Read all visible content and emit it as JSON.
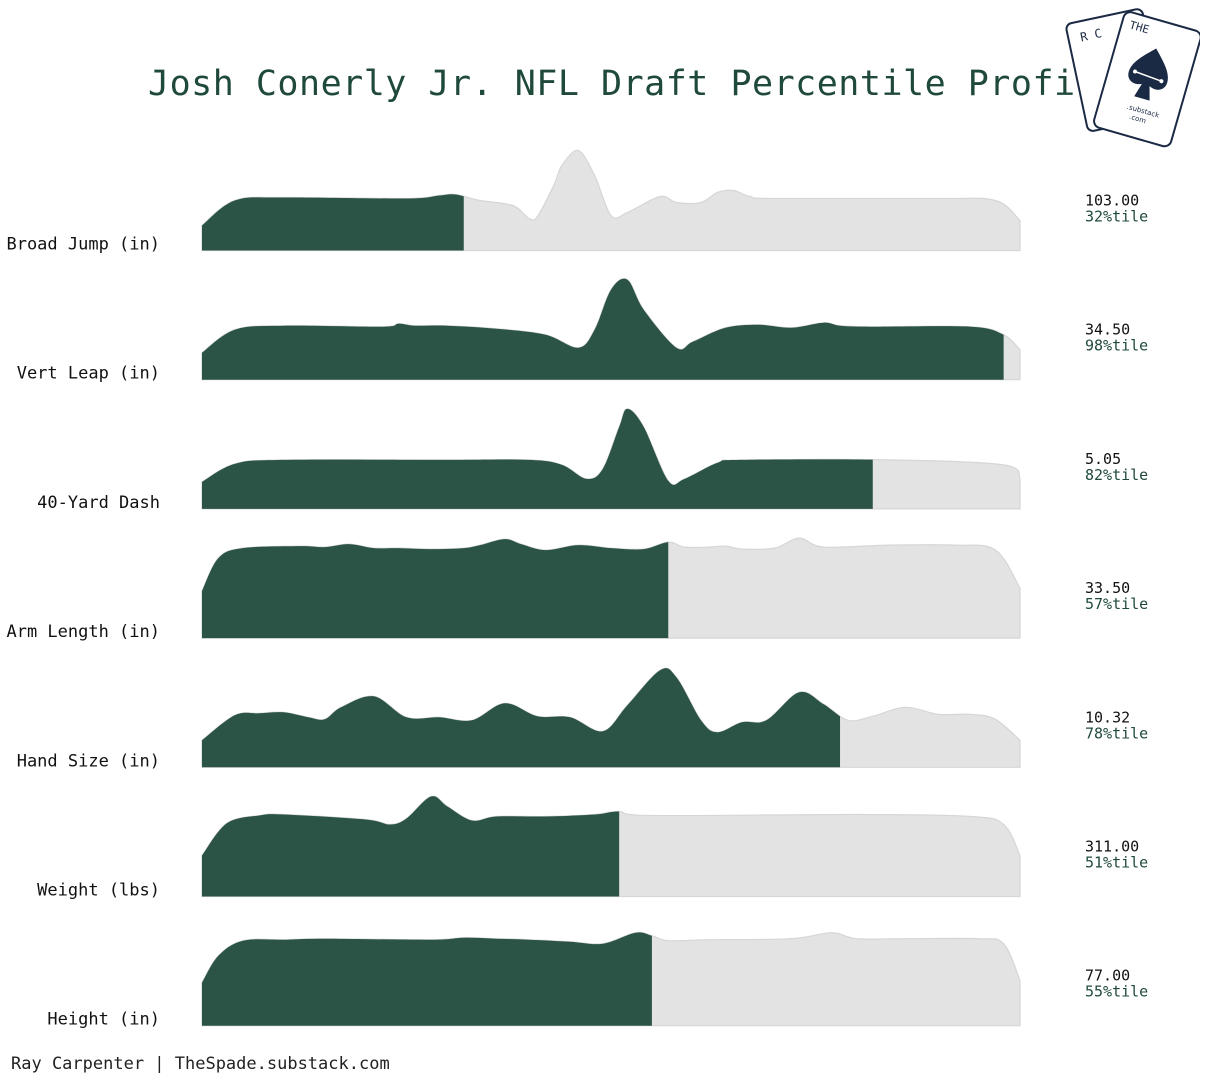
{
  "title": "Josh Conerly Jr. NFL Draft Percentile Profile",
  "footer": "Ray Carpenter | TheSpade.substack.com",
  "logo": {
    "letters_left": "R C",
    "letters_right": "T H E S P A D E",
    "site": ".substack",
    "tld": ".com",
    "icon": "spade-icon"
  },
  "colors": {
    "fill": "#2b5446",
    "background_density": "#e3e3e3",
    "outline": "#d6d6d6",
    "title": "#1f4a3a",
    "pct_text": "#1f4a3a"
  },
  "chart_data": {
    "type": "area",
    "title": "Josh Conerly Jr. NFL Draft Percentile Profile",
    "series": [
      {
        "name": "Broad Jump (in)",
        "value": "103.00",
        "percentile_label": "32%tile",
        "percentile": 32,
        "density": [
          [
            0,
            0.25
          ],
          [
            0.04,
            0.5
          ],
          [
            0.1,
            0.53
          ],
          [
            0.25,
            0.52
          ],
          [
            0.29,
            0.55
          ],
          [
            0.31,
            0.56
          ],
          [
            0.34,
            0.5
          ],
          [
            0.38,
            0.45
          ],
          [
            0.4,
            0.32
          ],
          [
            0.41,
            0.34
          ],
          [
            0.43,
            0.65
          ],
          [
            0.44,
            0.85
          ],
          [
            0.46,
            1.0
          ],
          [
            0.48,
            0.75
          ],
          [
            0.5,
            0.35
          ],
          [
            0.52,
            0.38
          ],
          [
            0.56,
            0.54
          ],
          [
            0.58,
            0.48
          ],
          [
            0.61,
            0.48
          ],
          [
            0.63,
            0.58
          ],
          [
            0.65,
            0.6
          ],
          [
            0.67,
            0.54
          ],
          [
            0.7,
            0.52
          ],
          [
            0.9,
            0.52
          ],
          [
            0.97,
            0.5
          ],
          [
            1,
            0.3
          ]
        ]
      },
      {
        "name": "Vert Leap (in)",
        "value": "34.50",
        "percentile_label": "98%tile",
        "percentile": 98,
        "density": [
          [
            0,
            0.27
          ],
          [
            0.04,
            0.5
          ],
          [
            0.1,
            0.54
          ],
          [
            0.22,
            0.53
          ],
          [
            0.24,
            0.56
          ],
          [
            0.26,
            0.54
          ],
          [
            0.3,
            0.54
          ],
          [
            0.36,
            0.51
          ],
          [
            0.42,
            0.45
          ],
          [
            0.46,
            0.32
          ],
          [
            0.48,
            0.5
          ],
          [
            0.5,
            0.9
          ],
          [
            0.52,
            1.0
          ],
          [
            0.54,
            0.7
          ],
          [
            0.58,
            0.32
          ],
          [
            0.6,
            0.38
          ],
          [
            0.64,
            0.52
          ],
          [
            0.68,
            0.55
          ],
          [
            0.72,
            0.52
          ],
          [
            0.76,
            0.57
          ],
          [
            0.78,
            0.54
          ],
          [
            0.82,
            0.53
          ],
          [
            0.94,
            0.53
          ],
          [
            0.98,
            0.45
          ],
          [
            1,
            0.3
          ]
        ]
      },
      {
        "name": "40-Yard Dash",
        "value": "5.05",
        "percentile_label": "82%tile",
        "percentile": 82,
        "density": [
          [
            0,
            0.27
          ],
          [
            0.04,
            0.45
          ],
          [
            0.1,
            0.49
          ],
          [
            0.3,
            0.49
          ],
          [
            0.4,
            0.49
          ],
          [
            0.44,
            0.44
          ],
          [
            0.47,
            0.3
          ],
          [
            0.49,
            0.4
          ],
          [
            0.51,
            0.82
          ],
          [
            0.52,
            1.0
          ],
          [
            0.54,
            0.82
          ],
          [
            0.57,
            0.28
          ],
          [
            0.59,
            0.3
          ],
          [
            0.63,
            0.46
          ],
          [
            0.66,
            0.49
          ],
          [
            0.84,
            0.49
          ],
          [
            0.98,
            0.44
          ],
          [
            1,
            0.3
          ]
        ]
      },
      {
        "name": "Arm Length (in)",
        "value": "33.50",
        "percentile_label": "57%tile",
        "percentile": 57,
        "density": [
          [
            0,
            0.47
          ],
          [
            0.02,
            0.8
          ],
          [
            0.05,
            0.9
          ],
          [
            0.12,
            0.92
          ],
          [
            0.15,
            0.91
          ],
          [
            0.18,
            0.94
          ],
          [
            0.21,
            0.9
          ],
          [
            0.24,
            0.9
          ],
          [
            0.28,
            0.89
          ],
          [
            0.32,
            0.9
          ],
          [
            0.34,
            0.93
          ],
          [
            0.37,
            0.99
          ],
          [
            0.39,
            0.94
          ],
          [
            0.42,
            0.88
          ],
          [
            0.46,
            0.93
          ],
          [
            0.5,
            0.9
          ],
          [
            0.54,
            0.89
          ],
          [
            0.57,
            0.96
          ],
          [
            0.59,
            0.91
          ],
          [
            0.62,
            0.91
          ],
          [
            0.64,
            0.92
          ],
          [
            0.66,
            0.89
          ],
          [
            0.7,
            0.9
          ],
          [
            0.73,
            1.0
          ],
          [
            0.76,
            0.91
          ],
          [
            0.84,
            0.93
          ],
          [
            0.92,
            0.93
          ],
          [
            0.97,
            0.88
          ],
          [
            1,
            0.5
          ]
        ]
      },
      {
        "name": "Hand Size (in)",
        "value": "10.32",
        "percentile_label": "78%tile",
        "percentile": 78,
        "density": [
          [
            0,
            0.27
          ],
          [
            0.04,
            0.52
          ],
          [
            0.07,
            0.54
          ],
          [
            0.1,
            0.55
          ],
          [
            0.13,
            0.5
          ],
          [
            0.15,
            0.48
          ],
          [
            0.17,
            0.6
          ],
          [
            0.21,
            0.71
          ],
          [
            0.25,
            0.5
          ],
          [
            0.29,
            0.5
          ],
          [
            0.33,
            0.47
          ],
          [
            0.37,
            0.64
          ],
          [
            0.41,
            0.51
          ],
          [
            0.45,
            0.5
          ],
          [
            0.49,
            0.36
          ],
          [
            0.52,
            0.62
          ],
          [
            0.56,
            0.97
          ],
          [
            0.58,
            0.9
          ],
          [
            0.61,
            0.47
          ],
          [
            0.63,
            0.35
          ],
          [
            0.66,
            0.45
          ],
          [
            0.69,
            0.47
          ],
          [
            0.73,
            0.75
          ],
          [
            0.76,
            0.63
          ],
          [
            0.79,
            0.47
          ],
          [
            0.82,
            0.51
          ],
          [
            0.86,
            0.6
          ],
          [
            0.9,
            0.53
          ],
          [
            0.94,
            0.53
          ],
          [
            0.97,
            0.48
          ],
          [
            1,
            0.27
          ]
        ]
      },
      {
        "name": "Weight (lbs)",
        "value": "311.00",
        "percentile_label": "51%tile",
        "percentile": 51,
        "density": [
          [
            0,
            0.41
          ],
          [
            0.03,
            0.73
          ],
          [
            0.07,
            0.81
          ],
          [
            0.1,
            0.82
          ],
          [
            0.2,
            0.77
          ],
          [
            0.23,
            0.72
          ],
          [
            0.25,
            0.78
          ],
          [
            0.28,
            1.0
          ],
          [
            0.3,
            0.9
          ],
          [
            0.33,
            0.76
          ],
          [
            0.36,
            0.8
          ],
          [
            0.42,
            0.8
          ],
          [
            0.48,
            0.82
          ],
          [
            0.51,
            0.85
          ],
          [
            0.55,
            0.81
          ],
          [
            0.8,
            0.82
          ],
          [
            0.94,
            0.8
          ],
          [
            0.98,
            0.72
          ],
          [
            1,
            0.41
          ]
        ]
      },
      {
        "name": "Height (in)",
        "value": "77.00",
        "percentile_label": "55%tile",
        "percentile": 55,
        "density": [
          [
            0,
            0.43
          ],
          [
            0.02,
            0.7
          ],
          [
            0.05,
            0.85
          ],
          [
            0.1,
            0.86
          ],
          [
            0.15,
            0.87
          ],
          [
            0.28,
            0.86
          ],
          [
            0.32,
            0.88
          ],
          [
            0.36,
            0.87
          ],
          [
            0.4,
            0.86
          ],
          [
            0.45,
            0.84
          ],
          [
            0.49,
            0.82
          ],
          [
            0.53,
            0.93
          ],
          [
            0.55,
            0.9
          ],
          [
            0.57,
            0.85
          ],
          [
            0.62,
            0.86
          ],
          [
            0.72,
            0.87
          ],
          [
            0.77,
            0.93
          ],
          [
            0.8,
            0.87
          ],
          [
            0.86,
            0.87
          ],
          [
            0.95,
            0.87
          ],
          [
            0.98,
            0.82
          ],
          [
            1,
            0.45
          ]
        ]
      }
    ]
  }
}
